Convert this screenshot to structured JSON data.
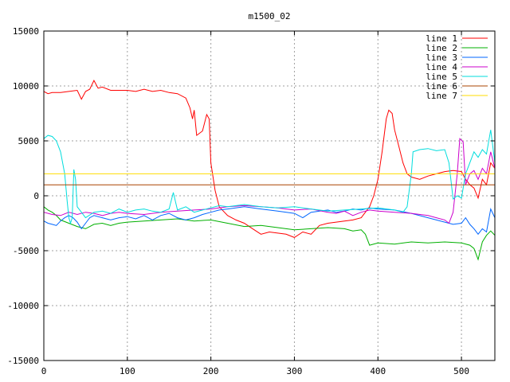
{
  "chart_data": {
    "type": "line",
    "title": "m1500_02",
    "xlabel": "",
    "ylabel": "",
    "xlim": [
      0,
      540
    ],
    "ylim": [
      -15000,
      15000
    ],
    "x_ticks": [
      0,
      100,
      200,
      300,
      400,
      500
    ],
    "y_ticks": [
      -15000,
      -10000,
      -5000,
      0,
      5000,
      10000,
      15000
    ],
    "grid": true,
    "legend_position": "top-right",
    "series": [
      {
        "name": "line 1",
        "color": "#ff0000",
        "points": [
          [
            0,
            9500
          ],
          [
            5,
            9300
          ],
          [
            10,
            9400
          ],
          [
            20,
            9400
          ],
          [
            30,
            9500
          ],
          [
            40,
            9600
          ],
          [
            45,
            8800
          ],
          [
            50,
            9500
          ],
          [
            55,
            9700
          ],
          [
            60,
            10500
          ],
          [
            65,
            9800
          ],
          [
            70,
            9900
          ],
          [
            80,
            9600
          ],
          [
            90,
            9600
          ],
          [
            100,
            9600
          ],
          [
            110,
            9500
          ],
          [
            120,
            9700
          ],
          [
            130,
            9500
          ],
          [
            140,
            9600
          ],
          [
            150,
            9400
          ],
          [
            160,
            9300
          ],
          [
            170,
            8900
          ],
          [
            175,
            8000
          ],
          [
            178,
            7000
          ],
          [
            180,
            7800
          ],
          [
            183,
            5500
          ],
          [
            190,
            5900
          ],
          [
            195,
            7400
          ],
          [
            198,
            7000
          ],
          [
            200,
            3000
          ],
          [
            205,
            500
          ],
          [
            210,
            -1000
          ],
          [
            220,
            -1800
          ],
          [
            230,
            -2200
          ],
          [
            240,
            -2500
          ],
          [
            250,
            -3000
          ],
          [
            260,
            -3500
          ],
          [
            270,
            -3300
          ],
          [
            280,
            -3400
          ],
          [
            290,
            -3500
          ],
          [
            300,
            -3800
          ],
          [
            310,
            -3300
          ],
          [
            320,
            -3500
          ],
          [
            330,
            -2700
          ],
          [
            340,
            -2500
          ],
          [
            350,
            -2400
          ],
          [
            360,
            -2300
          ],
          [
            370,
            -2200
          ],
          [
            380,
            -2000
          ],
          [
            385,
            -1500
          ],
          [
            390,
            -1000
          ],
          [
            395,
            0
          ],
          [
            400,
            1500
          ],
          [
            405,
            4000
          ],
          [
            410,
            7000
          ],
          [
            413,
            7800
          ],
          [
            417,
            7500
          ],
          [
            420,
            6000
          ],
          [
            425,
            4500
          ],
          [
            430,
            3000
          ],
          [
            435,
            2000
          ],
          [
            440,
            1700
          ],
          [
            450,
            1500
          ],
          [
            460,
            1800
          ],
          [
            470,
            2000
          ],
          [
            480,
            2200
          ],
          [
            490,
            2300
          ],
          [
            500,
            2200
          ],
          [
            505,
            1500
          ],
          [
            510,
            1000
          ],
          [
            515,
            700
          ],
          [
            520,
            -200
          ],
          [
            525,
            1500
          ],
          [
            530,
            1000
          ],
          [
            535,
            3000
          ],
          [
            540,
            2500
          ]
        ]
      },
      {
        "name": "line 2",
        "color": "#00b000",
        "points": [
          [
            0,
            -1000
          ],
          [
            5,
            -1300
          ],
          [
            10,
            -1500
          ],
          [
            15,
            -1800
          ],
          [
            20,
            -2200
          ],
          [
            30,
            -2500
          ],
          [
            40,
            -2800
          ],
          [
            50,
            -3000
          ],
          [
            60,
            -2600
          ],
          [
            70,
            -2500
          ],
          [
            80,
            -2700
          ],
          [
            90,
            -2500
          ],
          [
            100,
            -2400
          ],
          [
            120,
            -2300
          ],
          [
            140,
            -2200
          ],
          [
            160,
            -2100
          ],
          [
            180,
            -2300
          ],
          [
            200,
            -2200
          ],
          [
            220,
            -2500
          ],
          [
            240,
            -2800
          ],
          [
            260,
            -2700
          ],
          [
            280,
            -2900
          ],
          [
            300,
            -3100
          ],
          [
            320,
            -3000
          ],
          [
            340,
            -2900
          ],
          [
            360,
            -3000
          ],
          [
            370,
            -3200
          ],
          [
            380,
            -3100
          ],
          [
            385,
            -3500
          ],
          [
            390,
            -4500
          ],
          [
            400,
            -4300
          ],
          [
            420,
            -4400
          ],
          [
            440,
            -4200
          ],
          [
            460,
            -4300
          ],
          [
            480,
            -4200
          ],
          [
            500,
            -4300
          ],
          [
            510,
            -4500
          ],
          [
            515,
            -4800
          ],
          [
            520,
            -5800
          ],
          [
            525,
            -4200
          ],
          [
            530,
            -3600
          ],
          [
            535,
            -3200
          ],
          [
            540,
            -3600
          ]
        ]
      },
      {
        "name": "line 3",
        "color": "#0066ff",
        "points": [
          [
            0,
            -2300
          ],
          [
            5,
            -2500
          ],
          [
            10,
            -2600
          ],
          [
            15,
            -2700
          ],
          [
            20,
            -2300
          ],
          [
            25,
            -2000
          ],
          [
            30,
            -1800
          ],
          [
            35,
            -2000
          ],
          [
            40,
            -2400
          ],
          [
            45,
            -3000
          ],
          [
            50,
            -2500
          ],
          [
            55,
            -2000
          ],
          [
            60,
            -1800
          ],
          [
            70,
            -2000
          ],
          [
            80,
            -2200
          ],
          [
            90,
            -2000
          ],
          [
            100,
            -1900
          ],
          [
            110,
            -2100
          ],
          [
            120,
            -1800
          ],
          [
            130,
            -2200
          ],
          [
            140,
            -1800
          ],
          [
            150,
            -1600
          ],
          [
            160,
            -2000
          ],
          [
            170,
            -2200
          ],
          [
            180,
            -2000
          ],
          [
            190,
            -1700
          ],
          [
            200,
            -1500
          ],
          [
            210,
            -1300
          ],
          [
            220,
            -1200
          ],
          [
            240,
            -1000
          ],
          [
            260,
            -1200
          ],
          [
            280,
            -1400
          ],
          [
            300,
            -1600
          ],
          [
            310,
            -2000
          ],
          [
            320,
            -1500
          ],
          [
            340,
            -1300
          ],
          [
            350,
            -1500
          ],
          [
            360,
            -1400
          ],
          [
            370,
            -1200
          ],
          [
            380,
            -1300
          ],
          [
            390,
            -1100
          ],
          [
            400,
            -1200
          ],
          [
            420,
            -1300
          ],
          [
            440,
            -1600
          ],
          [
            460,
            -2000
          ],
          [
            480,
            -2400
          ],
          [
            490,
            -2600
          ],
          [
            500,
            -2500
          ],
          [
            505,
            -2000
          ],
          [
            510,
            -2600
          ],
          [
            515,
            -3000
          ],
          [
            520,
            -3500
          ],
          [
            525,
            -3000
          ],
          [
            530,
            -3300
          ],
          [
            535,
            -1200
          ],
          [
            540,
            -2000
          ]
        ]
      },
      {
        "name": "line 4",
        "color": "#cc00cc",
        "points": [
          [
            0,
            -1500
          ],
          [
            10,
            -1700
          ],
          [
            20,
            -1800
          ],
          [
            30,
            -1500
          ],
          [
            40,
            -1700
          ],
          [
            50,
            -1500
          ],
          [
            60,
            -1600
          ],
          [
            70,
            -1800
          ],
          [
            80,
            -1600
          ],
          [
            90,
            -1500
          ],
          [
            100,
            -1600
          ],
          [
            120,
            -1700
          ],
          [
            140,
            -1500
          ],
          [
            160,
            -1400
          ],
          [
            180,
            -1300
          ],
          [
            200,
            -1200
          ],
          [
            220,
            -1000
          ],
          [
            240,
            -900
          ],
          [
            260,
            -1000
          ],
          [
            280,
            -1100
          ],
          [
            300,
            -1300
          ],
          [
            320,
            -1200
          ],
          [
            340,
            -1500
          ],
          [
            350,
            -1600
          ],
          [
            360,
            -1400
          ],
          [
            370,
            -1800
          ],
          [
            380,
            -1500
          ],
          [
            390,
            -1300
          ],
          [
            400,
            -1400
          ],
          [
            420,
            -1500
          ],
          [
            440,
            -1600
          ],
          [
            460,
            -1800
          ],
          [
            470,
            -2000
          ],
          [
            480,
            -2200
          ],
          [
            485,
            -2500
          ],
          [
            490,
            -1500
          ],
          [
            495,
            2000
          ],
          [
            498,
            5200
          ],
          [
            502,
            4900
          ],
          [
            505,
            1000
          ],
          [
            510,
            2000
          ],
          [
            515,
            2300
          ],
          [
            520,
            1500
          ],
          [
            525,
            2500
          ],
          [
            530,
            2000
          ],
          [
            535,
            4000
          ],
          [
            540,
            2500
          ]
        ]
      },
      {
        "name": "line 5",
        "color": "#00dddd",
        "points": [
          [
            0,
            5200
          ],
          [
            5,
            5500
          ],
          [
            10,
            5400
          ],
          [
            15,
            5000
          ],
          [
            20,
            4000
          ],
          [
            25,
            2000
          ],
          [
            28,
            -500
          ],
          [
            30,
            -2000
          ],
          [
            32,
            -2500
          ],
          [
            34,
            -2000
          ],
          [
            36,
            2400
          ],
          [
            38,
            1500
          ],
          [
            40,
            -1000
          ],
          [
            45,
            -1500
          ],
          [
            50,
            -2000
          ],
          [
            60,
            -1500
          ],
          [
            70,
            -1400
          ],
          [
            80,
            -1600
          ],
          [
            90,
            -1200
          ],
          [
            100,
            -1500
          ],
          [
            110,
            -1300
          ],
          [
            120,
            -1200
          ],
          [
            130,
            -1400
          ],
          [
            140,
            -1500
          ],
          [
            150,
            -1200
          ],
          [
            155,
            300
          ],
          [
            160,
            -1300
          ],
          [
            170,
            -1000
          ],
          [
            180,
            -1500
          ],
          [
            190,
            -1300
          ],
          [
            200,
            -1100
          ],
          [
            210,
            -900
          ],
          [
            220,
            -1000
          ],
          [
            240,
            -800
          ],
          [
            260,
            -1000
          ],
          [
            280,
            -1100
          ],
          [
            300,
            -1000
          ],
          [
            320,
            -1200
          ],
          [
            340,
            -1400
          ],
          [
            360,
            -1300
          ],
          [
            380,
            -1200
          ],
          [
            400,
            -1100
          ],
          [
            420,
            -1300
          ],
          [
            430,
            -1500
          ],
          [
            435,
            -1000
          ],
          [
            440,
            2000
          ],
          [
            442,
            4000
          ],
          [
            450,
            4200
          ],
          [
            460,
            4300
          ],
          [
            470,
            4100
          ],
          [
            480,
            4200
          ],
          [
            485,
            3000
          ],
          [
            490,
            -300
          ],
          [
            495,
            0
          ],
          [
            500,
            -200
          ],
          [
            505,
            2000
          ],
          [
            510,
            3000
          ],
          [
            515,
            4000
          ],
          [
            520,
            3500
          ],
          [
            525,
            4200
          ],
          [
            530,
            3800
          ],
          [
            535,
            6000
          ],
          [
            540,
            3000
          ]
        ]
      },
      {
        "name": "line 6",
        "color": "#aa4400",
        "points": [
          [
            0,
            1000
          ],
          [
            50,
            1000
          ],
          [
            100,
            1000
          ],
          [
            150,
            1000
          ],
          [
            200,
            1000
          ],
          [
            250,
            1000
          ],
          [
            300,
            1000
          ],
          [
            350,
            1000
          ],
          [
            400,
            1000
          ],
          [
            450,
            1000
          ],
          [
            500,
            1000
          ],
          [
            540,
            1000
          ]
        ]
      },
      {
        "name": "line 7",
        "color": "#ffdd00",
        "points": [
          [
            0,
            2000
          ],
          [
            50,
            2000
          ],
          [
            100,
            2000
          ],
          [
            150,
            2000
          ],
          [
            200,
            2000
          ],
          [
            250,
            2000
          ],
          [
            300,
            2000
          ],
          [
            350,
            2000
          ],
          [
            400,
            2000
          ],
          [
            450,
            2000
          ],
          [
            500,
            2000
          ],
          [
            540,
            2000
          ]
        ]
      }
    ]
  }
}
